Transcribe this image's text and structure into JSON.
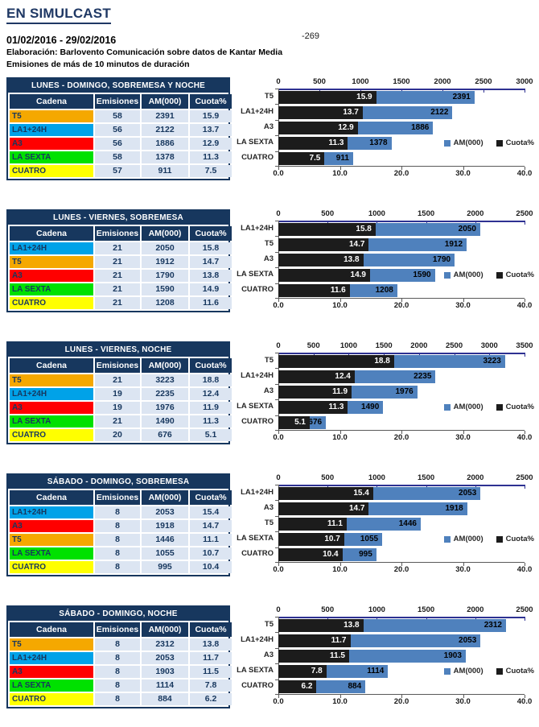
{
  "page": {
    "title": "EN SIMULCAST",
    "date_range": "01/02/2016 - 29/02/2016",
    "stray_value": "-269",
    "source_line": "Elaboración: Barlovento Comunicación sobre datos de Kantar Media",
    "filter_line": "Emisiones de más de 10 minutos de duración"
  },
  "colors": {
    "navy": "#17375E",
    "axis_blue": "#2E3192",
    "bar_blue": "#4F81BD",
    "bar_black": "#1C1C1C",
    "cell_bg": "#DCE5F2",
    "channels": {
      "T5": "#F5A800",
      "LA1+24H": "#00A2E8",
      "A3": "#FF0000",
      "LA SEXTA": "#00E100",
      "CUATRO": "#FFFF00"
    }
  },
  "table_headers": [
    "Cadena",
    "Emisiones",
    "AM(000)",
    "Cuota%"
  ],
  "legend": {
    "am": "AM(000)",
    "cuota": "Cuota%"
  },
  "sections": [
    {
      "table": {
        "title": "LUNES - DOMINGO, SOBREMESA Y NOCHE",
        "rows": [
          {
            "cadena": "T5",
            "emisiones": "58",
            "am": "2391",
            "cuota": "15.9"
          },
          {
            "cadena": "LA1+24H",
            "emisiones": "56",
            "am": "2122",
            "cuota": "13.7"
          },
          {
            "cadena": "A3",
            "emisiones": "56",
            "am": "1886",
            "cuota": "12.9"
          },
          {
            "cadena": "LA SEXTA",
            "emisiones": "58",
            "am": "1378",
            "cuota": "11.3"
          },
          {
            "cadena": "CUATRO",
            "emisiones": "57",
            "am": "911",
            "cuota": "7.5"
          }
        ]
      }
    },
    {
      "table": {
        "title": "LUNES - VIERNES, SOBREMESA",
        "rows": [
          {
            "cadena": "LA1+24H",
            "emisiones": "21",
            "am": "2050",
            "cuota": "15.8"
          },
          {
            "cadena": "T5",
            "emisiones": "21",
            "am": "1912",
            "cuota": "14.7"
          },
          {
            "cadena": "A3",
            "emisiones": "21",
            "am": "1790",
            "cuota": "13.8"
          },
          {
            "cadena": "LA SEXTA",
            "emisiones": "21",
            "am": "1590",
            "cuota": "14.9"
          },
          {
            "cadena": "CUATRO",
            "emisiones": "21",
            "am": "1208",
            "cuota": "11.6"
          }
        ]
      }
    },
    {
      "table": {
        "title": "LUNES - VIERNES, NOCHE",
        "rows": [
          {
            "cadena": "T5",
            "emisiones": "21",
            "am": "3223",
            "cuota": "18.8"
          },
          {
            "cadena": "LA1+24H",
            "emisiones": "19",
            "am": "2235",
            "cuota": "12.4"
          },
          {
            "cadena": "A3",
            "emisiones": "19",
            "am": "1976",
            "cuota": "11.9"
          },
          {
            "cadena": "LA SEXTA",
            "emisiones": "21",
            "am": "1490",
            "cuota": "11.3"
          },
          {
            "cadena": "CUATRO",
            "emisiones": "20",
            "am": "676",
            "cuota": "5.1"
          }
        ]
      }
    },
    {
      "table": {
        "title": "SÁBADO - DOMINGO, SOBREMESA",
        "rows": [
          {
            "cadena": "LA1+24H",
            "emisiones": "8",
            "am": "2053",
            "cuota": "15.4"
          },
          {
            "cadena": "A3",
            "emisiones": "8",
            "am": "1918",
            "cuota": "14.7"
          },
          {
            "cadena": "T5",
            "emisiones": "8",
            "am": "1446",
            "cuota": "11.1"
          },
          {
            "cadena": "LA SEXTA",
            "emisiones": "8",
            "am": "1055",
            "cuota": "10.7"
          },
          {
            "cadena": "CUATRO",
            "emisiones": "8",
            "am": "995",
            "cuota": "10.4"
          }
        ]
      }
    },
    {
      "table": {
        "title": "SÁBADO - DOMINGO, NOCHE",
        "rows": [
          {
            "cadena": "T5",
            "emisiones": "8",
            "am": "2312",
            "cuota": "13.8"
          },
          {
            "cadena": "LA1+24H",
            "emisiones": "8",
            "am": "2053",
            "cuota": "11.7"
          },
          {
            "cadena": "A3",
            "emisiones": "8",
            "am": "1903",
            "cuota": "11.5"
          },
          {
            "cadena": "LA SEXTA",
            "emisiones": "8",
            "am": "1114",
            "cuota": "7.8"
          },
          {
            "cadena": "CUATRO",
            "emisiones": "8",
            "am": "884",
            "cuota": "6.2"
          }
        ]
      }
    }
  ],
  "chart_data": [
    {
      "type": "bar",
      "orientation": "horizontal",
      "title": "LUNES - DOMINGO, SOBREMESA Y NOCHE",
      "categories": [
        "T5",
        "LA1+24H",
        "A3",
        "LA SEXTA",
        "CUATRO"
      ],
      "series": [
        {
          "name": "AM(000)",
          "axis": "top",
          "values": [
            2391,
            2122,
            1886,
            1378,
            911
          ]
        },
        {
          "name": "Cuota%",
          "axis": "bottom",
          "values": [
            15.9,
            13.7,
            12.9,
            11.3,
            7.5
          ]
        }
      ],
      "top_axis": {
        "min": 0,
        "max": 3000,
        "ticks": [
          0,
          500,
          1000,
          1500,
          2000,
          2500,
          3000
        ]
      },
      "bottom_axis": {
        "min": 0,
        "max": 40,
        "ticks": [
          "0.0",
          "10.0",
          "20.0",
          "30.0",
          "40.0"
        ]
      },
      "legend": [
        "AM(000)",
        "Cuota%"
      ],
      "legend_position": "inside-right"
    },
    {
      "type": "bar",
      "orientation": "horizontal",
      "title": "LUNES - VIERNES, SOBREMESA",
      "categories": [
        "LA1+24H",
        "T5",
        "A3",
        "LA SEXTA",
        "CUATRO"
      ],
      "series": [
        {
          "name": "AM(000)",
          "axis": "top",
          "values": [
            2050,
            1912,
            1790,
            1590,
            1208
          ]
        },
        {
          "name": "Cuota%",
          "axis": "bottom",
          "values": [
            15.8,
            14.7,
            13.8,
            14.9,
            11.6
          ]
        }
      ],
      "top_axis": {
        "min": 0,
        "max": 2500,
        "ticks": [
          0,
          500,
          1000,
          1500,
          2000,
          2500
        ]
      },
      "bottom_axis": {
        "min": 0,
        "max": 40,
        "ticks": [
          "0.0",
          "10.0",
          "20.0",
          "30.0",
          "40.0"
        ]
      },
      "legend": [
        "AM(000)",
        "Cuota%"
      ],
      "legend_position": "inside-right"
    },
    {
      "type": "bar",
      "orientation": "horizontal",
      "title": "LUNES - VIERNES, NOCHE",
      "categories": [
        "T5",
        "LA1+24H",
        "A3",
        "LA SEXTA",
        "CUATRO"
      ],
      "series": [
        {
          "name": "AM(000)",
          "axis": "top",
          "values": [
            3223,
            2235,
            1976,
            1490,
            676
          ]
        },
        {
          "name": "Cuota%",
          "axis": "bottom",
          "values": [
            18.8,
            12.4,
            11.9,
            11.3,
            5.1
          ]
        }
      ],
      "top_axis": {
        "min": 0,
        "max": 3500,
        "ticks": [
          0,
          500,
          1000,
          1500,
          2000,
          2500,
          3000,
          3500
        ]
      },
      "bottom_axis": {
        "min": 0,
        "max": 40,
        "ticks": [
          "0.0",
          "10.0",
          "20.0",
          "30.0",
          "40.0"
        ]
      },
      "legend": [
        "AM(000)",
        "Cuota%"
      ],
      "legend_position": "inside-right"
    },
    {
      "type": "bar",
      "orientation": "horizontal",
      "title": "SÁBADO - DOMINGO, SOBREMESA",
      "categories": [
        "LA1+24H",
        "A3",
        "T5",
        "LA SEXTA",
        "CUATRO"
      ],
      "series": [
        {
          "name": "AM(000)",
          "axis": "top",
          "values": [
            2053,
            1918,
            1446,
            1055,
            995
          ]
        },
        {
          "name": "Cuota%",
          "axis": "bottom",
          "values": [
            15.4,
            14.7,
            11.1,
            10.7,
            10.4
          ]
        }
      ],
      "top_axis": {
        "min": 0,
        "max": 2500,
        "ticks": [
          0,
          500,
          1000,
          1500,
          2000,
          2500
        ]
      },
      "bottom_axis": {
        "min": 0,
        "max": 40,
        "ticks": [
          "0.0",
          "10.0",
          "20.0",
          "30.0",
          "40.0"
        ]
      },
      "legend": [
        "AM(000)",
        "Cuota%"
      ],
      "legend_position": "inside-right"
    },
    {
      "type": "bar",
      "orientation": "horizontal",
      "title": "SÁBADO - DOMINGO, NOCHE",
      "categories": [
        "T5",
        "LA1+24H",
        "A3",
        "LA SEXTA",
        "CUATRO"
      ],
      "series": [
        {
          "name": "AM(000)",
          "axis": "top",
          "values": [
            2312,
            2053,
            1903,
            1114,
            884
          ]
        },
        {
          "name": "Cuota%",
          "axis": "bottom",
          "values": [
            13.8,
            11.7,
            11.5,
            7.8,
            6.2
          ]
        }
      ],
      "top_axis": {
        "min": 0,
        "max": 2500,
        "ticks": [
          0,
          500,
          1000,
          1500,
          2000,
          2500
        ]
      },
      "bottom_axis": {
        "min": 0,
        "max": 40,
        "ticks": [
          "0.0",
          "10.0",
          "20.0",
          "30.0",
          "40.0"
        ]
      },
      "legend": [
        "AM(000)",
        "Cuota%"
      ],
      "legend_position": "inside-right"
    }
  ]
}
